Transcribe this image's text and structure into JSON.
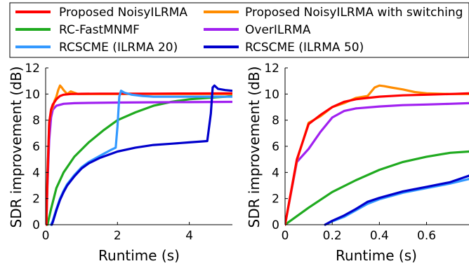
{
  "legend": {
    "entries": [
      {
        "label": "Proposed NoisyILRMA",
        "color": "#ff0000"
      },
      {
        "label": "Proposed NoisyILRMA with switching",
        "color": "#ff8c00"
      },
      {
        "label": "RC-FastMNMF",
        "color": "#1faa1f"
      },
      {
        "label": "OverILRMA",
        "color": "#a020f0"
      },
      {
        "label": "RCSCME (ILRMA 20)",
        "color": "#3399ff"
      },
      {
        "label": "RCSCME (ILRMA 50)",
        "color": "#0000cc"
      }
    ]
  },
  "chart_data": [
    {
      "type": "line",
      "xlabel": "Runtime (s)",
      "ylabel": "SDR improvement (dB)",
      "xlim": [
        0,
        5.2
      ],
      "ylim": [
        0,
        12
      ],
      "xticks": [
        "0",
        "2",
        "4"
      ],
      "xtick_values": [
        0,
        2,
        4
      ],
      "yticks": [
        "0",
        "2",
        "4",
        "6",
        "8",
        "10",
        "12"
      ],
      "ytick_values": [
        0,
        2,
        4,
        6,
        8,
        10,
        12
      ],
      "grid": false,
      "series": [
        {
          "name": "RC-FastMNMF",
          "color": "#1faa1f",
          "x": [
            0.05,
            0.15,
            0.3,
            0.5,
            0.8,
            1.2,
            1.6,
            2.0,
            2.5,
            3.0,
            3.5,
            4.0,
            4.5,
            5.0,
            5.2
          ],
          "y": [
            0,
            1.2,
            2.8,
            4.0,
            5.2,
            6.3,
            7.2,
            8.0,
            8.6,
            9.1,
            9.4,
            9.6,
            9.7,
            9.8,
            9.85
          ]
        },
        {
          "name": "OverILRMA",
          "color": "#a020f0",
          "x": [
            0.02,
            0.05,
            0.1,
            0.15,
            0.2,
            0.3,
            0.5,
            0.8,
            1.2,
            2.0,
            3.0,
            4.0,
            5.2
          ],
          "y": [
            0,
            3.0,
            6.5,
            8.2,
            8.8,
            9.1,
            9.25,
            9.3,
            9.32,
            9.35,
            9.37,
            9.38,
            9.4
          ]
        },
        {
          "name": "Proposed NoisyILRMA with switching",
          "color": "#ff8c00",
          "x": [
            0.02,
            0.05,
            0.1,
            0.15,
            0.2,
            0.25,
            0.3,
            0.35,
            0.4,
            0.45,
            0.5,
            0.6,
            0.7,
            0.8,
            0.9,
            1.0,
            1.2,
            2.0,
            3.0,
            4.0,
            5.2
          ],
          "y": [
            0,
            3.5,
            7.8,
            8.7,
            9.0,
            9.5,
            9.8,
            10.3,
            10.65,
            10.5,
            10.3,
            10.0,
            10.2,
            10.1,
            10.0,
            10.0,
            10.0,
            10.0,
            10.0,
            10.0,
            10.0
          ]
        },
        {
          "name": "Proposed NoisyILRMA",
          "color": "#ff0000",
          "x": [
            0.02,
            0.05,
            0.1,
            0.15,
            0.2,
            0.3,
            0.4,
            0.5,
            0.7,
            1.0,
            1.5,
            2.0,
            3.0,
            4.0,
            5.2
          ],
          "y": [
            0,
            3.8,
            7.8,
            8.8,
            9.2,
            9.6,
            9.85,
            9.95,
            10.0,
            10.02,
            10.03,
            10.03,
            10.03,
            10.04,
            10.05
          ]
        },
        {
          "name": "RCSCME (ILRMA 20)",
          "color": "#3399ff",
          "x": [
            0.15,
            0.2,
            0.3,
            0.4,
            0.5,
            0.6,
            0.8,
            1.0,
            1.2,
            1.4,
            1.6,
            1.8,
            1.95,
            2.0,
            2.05,
            2.1,
            2.2,
            2.4,
            2.7,
            3.0,
            3.5,
            4.0,
            5.2
          ],
          "y": [
            0,
            0.3,
            1.2,
            2.0,
            2.6,
            3.1,
            3.8,
            4.4,
            4.8,
            5.1,
            5.4,
            5.7,
            5.9,
            7.5,
            9.8,
            10.25,
            10.1,
            9.95,
            9.85,
            9.8,
            9.8,
            9.8,
            9.8
          ]
        },
        {
          "name": "RCSCME (ILRMA 50)",
          "color": "#0000cc",
          "x": [
            0.17,
            0.2,
            0.3,
            0.4,
            0.5,
            0.6,
            0.8,
            1.0,
            1.2,
            1.5,
            2.0,
            2.5,
            3.0,
            3.5,
            4.0,
            4.5,
            4.6,
            4.65,
            4.7,
            4.8,
            5.0,
            5.2
          ],
          "y": [
            0,
            0.2,
            1.1,
            1.9,
            2.5,
            3.0,
            3.7,
            4.3,
            4.7,
            5.1,
            5.6,
            5.9,
            6.1,
            6.2,
            6.3,
            6.4,
            8.5,
            10.5,
            10.65,
            10.4,
            10.3,
            10.25
          ]
        }
      ]
    },
    {
      "type": "line",
      "xlabel": "Runtime (s)",
      "ylabel": "SDR improvement (dB)",
      "xlim": [
        0,
        0.78
      ],
      "ylim": [
        0,
        12
      ],
      "xticks": [
        "0",
        "0.2",
        "0.4",
        "0.6"
      ],
      "xtick_values": [
        0,
        0.2,
        0.4,
        0.6
      ],
      "yticks": [
        "0",
        "2",
        "4",
        "6",
        "8",
        "10",
        "12"
      ],
      "ytick_values": [
        0,
        2,
        4,
        6,
        8,
        10,
        12
      ],
      "grid": false,
      "series": [
        {
          "name": "RC-FastMNMF",
          "color": "#1faa1f",
          "x": [
            0,
            0.1,
            0.2,
            0.3,
            0.4,
            0.5,
            0.6,
            0.7,
            0.78
          ],
          "y": [
            0,
            1.3,
            2.5,
            3.4,
            4.2,
            4.8,
            5.2,
            5.5,
            5.6
          ]
        },
        {
          "name": "OverILRMA",
          "color": "#a020f0",
          "x": [
            0,
            0.05,
            0.1,
            0.15,
            0.2,
            0.25,
            0.3,
            0.4,
            0.5,
            0.6,
            0.7,
            0.78
          ],
          "y": [
            0,
            4.8,
            5.8,
            7.1,
            8.2,
            8.7,
            8.9,
            9.05,
            9.15,
            9.2,
            9.25,
            9.3
          ]
        },
        {
          "name": "RCSCME (ILRMA 20)",
          "color": "#3399ff",
          "x": [
            0.17,
            0.2,
            0.25,
            0.3,
            0.35,
            0.4,
            0.5,
            0.6,
            0.7,
            0.78
          ],
          "y": [
            0,
            0.25,
            0.6,
            1.1,
            1.6,
            1.95,
            2.45,
            2.8,
            3.15,
            3.5
          ]
        },
        {
          "name": "RCSCME (ILRMA 50)",
          "color": "#0000cc",
          "x": [
            0.17,
            0.2,
            0.25,
            0.3,
            0.35,
            0.4,
            0.5,
            0.6,
            0.7,
            0.78
          ],
          "y": [
            0,
            0.3,
            0.7,
            1.2,
            1.75,
            2.05,
            2.55,
            2.9,
            3.25,
            3.75
          ]
        },
        {
          "name": "Proposed NoisyILRMA with switching",
          "color": "#ff8c00",
          "x": [
            0,
            0.05,
            0.1,
            0.15,
            0.2,
            0.25,
            0.3,
            0.35,
            0.38,
            0.4,
            0.42,
            0.45,
            0.5,
            0.55,
            0.6,
            0.7,
            0.78
          ],
          "y": [
            0,
            4.9,
            7.8,
            8.3,
            9.0,
            9.3,
            9.7,
            9.85,
            10.5,
            10.65,
            10.6,
            10.5,
            10.35,
            10.15,
            10.05,
            10.0,
            10.0
          ]
        },
        {
          "name": "Proposed NoisyILRMA",
          "color": "#ff0000",
          "x": [
            0,
            0.05,
            0.1,
            0.15,
            0.2,
            0.25,
            0.3,
            0.35,
            0.4,
            0.5,
            0.6,
            0.7,
            0.78
          ],
          "y": [
            0,
            5.0,
            7.7,
            8.4,
            9.0,
            9.4,
            9.6,
            9.7,
            9.8,
            9.9,
            9.95,
            10.0,
            10.05
          ]
        }
      ]
    }
  ]
}
